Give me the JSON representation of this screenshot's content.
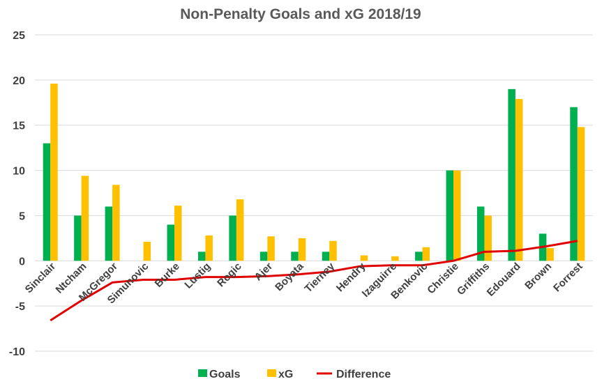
{
  "chart_data": {
    "type": "bar",
    "title": "Non-Penalty Goals and xG 2018/19",
    "xlabel": "",
    "ylabel": "",
    "ylim": [
      -10,
      25
    ],
    "yticks": [
      25,
      20,
      15,
      10,
      5,
      0,
      -5,
      -10
    ],
    "grid": true,
    "legend_position": "bottom",
    "categories": [
      "Sinclair",
      "Ntcham",
      "McGregor",
      "Simunovic",
      "Burke",
      "Lustig",
      "Rogic",
      "Ajer",
      "Boyata",
      "Tierney",
      "Hendry",
      "Izaguirre",
      "Benkovic",
      "Christie",
      "Griffiths",
      "Edouard",
      "Brown",
      "Forrest"
    ],
    "series": [
      {
        "name": "Goals",
        "kind": "bar",
        "color": "#00b050",
        "values": [
          13,
          5,
          6,
          0,
          4,
          1,
          5,
          1,
          1,
          1,
          0,
          0,
          1,
          10,
          6,
          19,
          3,
          17
        ]
      },
      {
        "name": "xG",
        "kind": "bar",
        "color": "#ffc000",
        "values": [
          19.6,
          9.4,
          8.4,
          2.1,
          6.1,
          2.8,
          6.8,
          2.7,
          2.5,
          2.2,
          0.6,
          0.5,
          1.5,
          10,
          5,
          17.9,
          1.4,
          14.8
        ]
      },
      {
        "name": "Difference",
        "kind": "line",
        "color": "#e00000",
        "values": [
          -6.6,
          -4.4,
          -2.4,
          -2.1,
          -2.1,
          -1.8,
          -1.8,
          -1.7,
          -1.5,
          -1.2,
          -0.6,
          -0.5,
          -0.5,
          0,
          1,
          1.1,
          1.6,
          2.2
        ]
      }
    ]
  }
}
